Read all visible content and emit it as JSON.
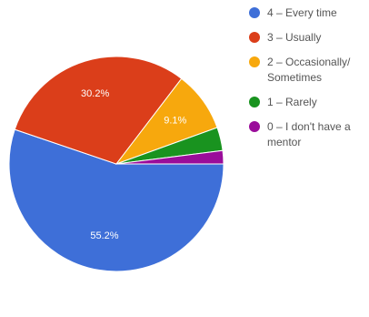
{
  "chart_data": {
    "type": "pie",
    "slices": [
      {
        "label": "4 – Every time",
        "value": 55.2,
        "value_label": "55.2%",
        "color": "#3e6fd8"
      },
      {
        "label": "3 – Usually",
        "value": 30.2,
        "value_label": "30.2%",
        "color": "#db3e1a"
      },
      {
        "label": "2 – Occasionally/ Sometimes",
        "value": 9.1,
        "value_label": "9.1%",
        "color": "#f7a80d"
      },
      {
        "label": "1 – Rarely",
        "value": 3.5,
        "value_label": "",
        "color": "#19931f"
      },
      {
        "label": "0 – I don't have a mentor",
        "value": 2.0,
        "value_label": "",
        "color": "#9a0d9a"
      }
    ],
    "legend_position": "right"
  }
}
